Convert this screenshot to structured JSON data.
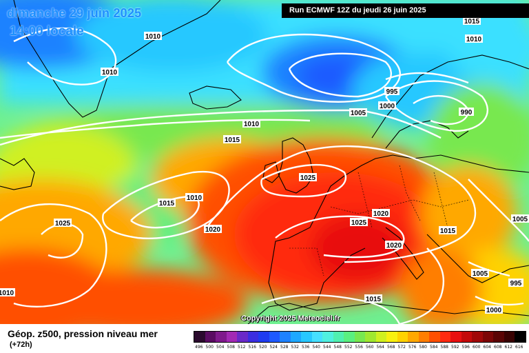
{
  "header": {
    "date": "dimanche 29 juin 2025",
    "time": "14:00 locale",
    "run": "Run ECMWF 12Z du jeudi 26 juin 2025"
  },
  "map": {
    "copyright": "Copyright 2025 Meteociel.fr",
    "isobar_labels": [
      "1010",
      "1010",
      "1010",
      "1015",
      "1015",
      "1010",
      "1005",
      "995",
      "1000",
      "990",
      "1010",
      "1015",
      "1025",
      "1015",
      "1010",
      "1020",
      "1025",
      "1025",
      "1020",
      "1015",
      "1005",
      "1020",
      "1005",
      "995",
      "1000",
      "1015"
    ],
    "land_color": "#000000",
    "isobar_color": "#ffffff"
  },
  "legend": {
    "title": "Géop. z500, pression niveau mer",
    "subtitle": "(+72h)",
    "scale": [
      {
        "label": "496",
        "color": "#2b0a2e"
      },
      {
        "label": "500",
        "color": "#5a0c62"
      },
      {
        "label": "504",
        "color": "#7f1a8c"
      },
      {
        "label": "508",
        "color": "#a22ab4"
      },
      {
        "label": "512",
        "color": "#6a2ac8"
      },
      {
        "label": "516",
        "color": "#3b2ee0"
      },
      {
        "label": "520",
        "color": "#1f3cf0"
      },
      {
        "label": "524",
        "color": "#1e5aff"
      },
      {
        "label": "528",
        "color": "#1e82ff"
      },
      {
        "label": "532",
        "color": "#1ea8ff"
      },
      {
        "label": "536",
        "color": "#28c8ff"
      },
      {
        "label": "540",
        "color": "#46e0ff"
      },
      {
        "label": "544",
        "color": "#50f0e0"
      },
      {
        "label": "548",
        "color": "#50f0b0"
      },
      {
        "label": "552",
        "color": "#5af080"
      },
      {
        "label": "556",
        "color": "#78e850"
      },
      {
        "label": "560",
        "color": "#a0e830"
      },
      {
        "label": "564",
        "color": "#d0f020"
      },
      {
        "label": "568",
        "color": "#f8f010"
      },
      {
        "label": "572",
        "color": "#ffd200"
      },
      {
        "label": "576",
        "color": "#ffa800"
      },
      {
        "label": "580",
        "color": "#ff7e00"
      },
      {
        "label": "584",
        "color": "#ff5000"
      },
      {
        "label": "588",
        "color": "#ff2a10"
      },
      {
        "label": "592",
        "color": "#e81010"
      },
      {
        "label": "596",
        "color": "#c40a0a"
      },
      {
        "label": "600",
        "color": "#a00808"
      },
      {
        "label": "604",
        "color": "#7c0606"
      },
      {
        "label": "608",
        "color": "#5a0404"
      },
      {
        "label": "612",
        "color": "#380202"
      },
      {
        "label": "616",
        "color": "#000000"
      }
    ]
  }
}
